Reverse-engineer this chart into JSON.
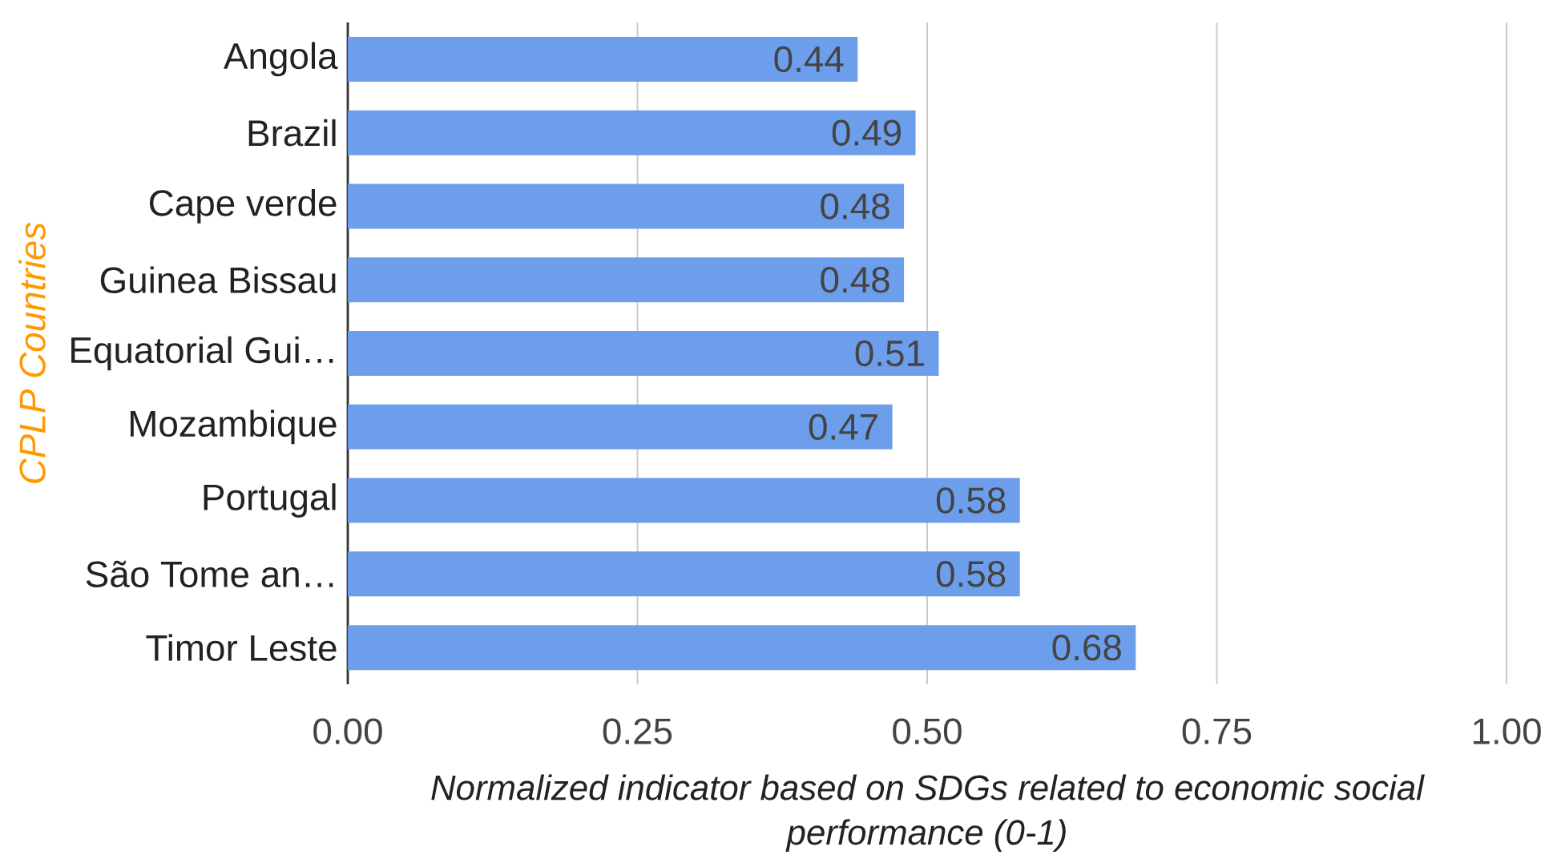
{
  "chart_data": {
    "type": "bar",
    "orientation": "horizontal",
    "ylabel": "CPLP Countries",
    "xlabel": "Normalized indicator based on SDGs related to economic social performance (0-1)",
    "categories": [
      "Angola",
      "Brazil",
      "Cape verde",
      "Guinea Bissau",
      "Equatorial Gui…",
      "Mozambique",
      "Portugal",
      "São Tome an…",
      "Timor Leste"
    ],
    "values": [
      0.44,
      0.49,
      0.48,
      0.48,
      0.51,
      0.47,
      0.58,
      0.58,
      0.68
    ],
    "color": "#6d9eeb",
    "xlim": [
      0,
      1
    ],
    "xticks": [
      {
        "value": 0,
        "label": "0.00"
      },
      {
        "value": 0.25,
        "label": "0.25"
      },
      {
        "value": 0.5,
        "label": "0.50"
      },
      {
        "value": 0.75,
        "label": "0.75"
      },
      {
        "value": 1,
        "label": "1.00"
      }
    ],
    "grid": "x",
    "data_labels": true
  }
}
